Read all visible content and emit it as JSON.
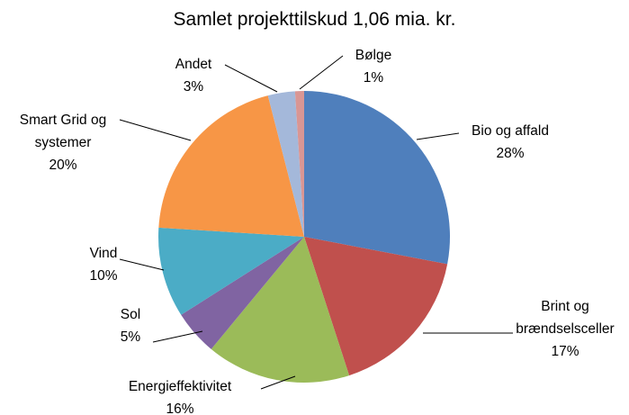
{
  "chart_data": {
    "type": "pie",
    "title": "Samlet projekttilskud 1,06 mia. kr.",
    "categories": [
      "Bio og affald",
      "Brint og brændselsceller",
      "Energieffektivitet",
      "Sol",
      "Vind",
      "Smart Grid og systemer",
      "Andet",
      "Bølge"
    ],
    "values": [
      28,
      17,
      16,
      5,
      10,
      20,
      3,
      1
    ],
    "value_labels": [
      "28%",
      "17%",
      "16%",
      "5%",
      "10%",
      "20%",
      "3%",
      "1%"
    ],
    "colors": [
      "#4f7fbc",
      "#c0504d",
      "#9bbb59",
      "#8064a2",
      "#4bacc6",
      "#f79646",
      "#a4b8da",
      "#d99694"
    ]
  }
}
